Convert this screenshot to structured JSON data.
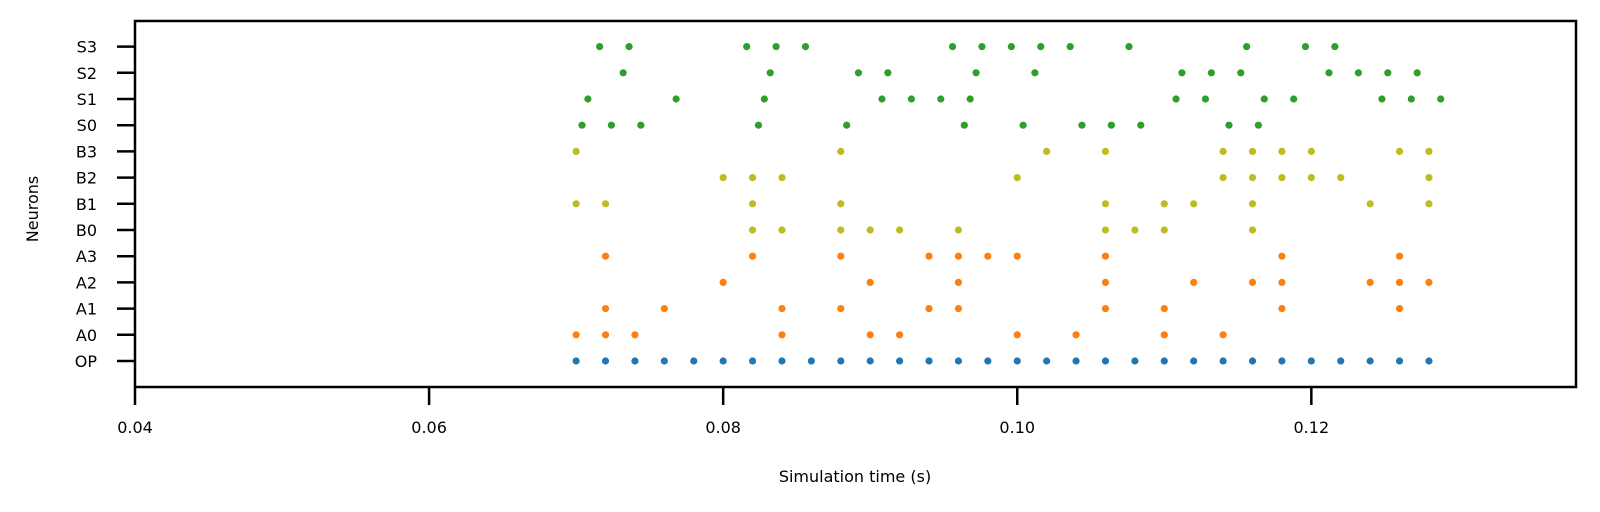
{
  "chart_data": {
    "type": "scatter",
    "xlabel": "Simulation time (s)",
    "ylabel": "Neurons",
    "xlim": [
      0.04,
      0.138
    ],
    "x_ticks": [
      "0.04",
      "0.06",
      "0.08",
      "0.10",
      "0.12"
    ],
    "x_tick_values": [
      0.04,
      0.06,
      0.08,
      0.1,
      0.12
    ],
    "categories": [
      "OP",
      "A0",
      "A1",
      "A2",
      "A3",
      "B0",
      "B1",
      "B2",
      "B3",
      "S0",
      "S1",
      "S2",
      "S3"
    ],
    "grid": false,
    "series": [
      {
        "category": "OP",
        "color": "#1f77b4",
        "x": [
          0.07,
          0.072,
          0.074,
          0.076,
          0.078,
          0.08,
          0.082,
          0.084,
          0.086,
          0.088,
          0.09,
          0.092,
          0.094,
          0.096,
          0.098,
          0.1,
          0.102,
          0.104,
          0.106,
          0.108,
          0.11,
          0.112,
          0.114,
          0.116,
          0.118,
          0.12,
          0.122,
          0.124,
          0.126,
          0.128
        ]
      },
      {
        "category": "A0",
        "color": "#ff7f0e",
        "x": [
          0.07,
          0.072,
          0.074,
          0.084,
          0.09,
          0.092,
          0.1,
          0.104,
          0.11,
          0.114
        ]
      },
      {
        "category": "A1",
        "color": "#ff7f0e",
        "x": [
          0.072,
          0.076,
          0.084,
          0.088,
          0.094,
          0.096,
          0.106,
          0.11,
          0.118,
          0.126
        ]
      },
      {
        "category": "A2",
        "color": "#ff7f0e",
        "x": [
          0.08,
          0.09,
          0.096,
          0.106,
          0.112,
          0.116,
          0.118,
          0.124,
          0.126,
          0.128
        ]
      },
      {
        "category": "A3",
        "color": "#ff7f0e",
        "x": [
          0.072,
          0.082,
          0.088,
          0.094,
          0.096,
          0.098,
          0.1,
          0.106,
          0.118,
          0.126
        ]
      },
      {
        "category": "B0",
        "color": "#bcbd22",
        "x": [
          0.082,
          0.084,
          0.088,
          0.09,
          0.092,
          0.096,
          0.106,
          0.108,
          0.11,
          0.116
        ]
      },
      {
        "category": "B1",
        "color": "#bcbd22",
        "x": [
          0.07,
          0.072,
          0.082,
          0.088,
          0.106,
          0.11,
          0.112,
          0.116,
          0.124,
          0.128
        ]
      },
      {
        "category": "B2",
        "color": "#bcbd22",
        "x": [
          0.08,
          0.082,
          0.084,
          0.1,
          0.114,
          0.116,
          0.118,
          0.12,
          0.122,
          0.128
        ]
      },
      {
        "category": "B3",
        "color": "#bcbd22",
        "x": [
          0.07,
          0.088,
          0.102,
          0.106,
          0.114,
          0.116,
          0.118,
          0.12,
          0.126,
          0.128
        ]
      },
      {
        "category": "S0",
        "color": "#2ca02c",
        "x": [
          0.0704,
          0.0724,
          0.0744,
          0.0824,
          0.0884,
          0.0964,
          0.1004,
          0.1044,
          0.1064,
          0.1084,
          0.1144,
          0.1164
        ]
      },
      {
        "category": "S1",
        "color": "#2ca02c",
        "x": [
          0.0708,
          0.0768,
          0.0828,
          0.0908,
          0.0928,
          0.0948,
          0.0968,
          0.1108,
          0.1128,
          0.1168,
          0.1188,
          0.1248,
          0.1268,
          0.1288
        ]
      },
      {
        "category": "S2",
        "color": "#2ca02c",
        "x": [
          0.0732,
          0.0832,
          0.0892,
          0.0912,
          0.0972,
          0.1012,
          0.1112,
          0.1132,
          0.1152,
          0.1212,
          0.1232,
          0.1252,
          0.1272
        ]
      },
      {
        "category": "S3",
        "color": "#2ca02c",
        "x": [
          0.0716,
          0.0736,
          0.0816,
          0.0836,
          0.0856,
          0.0956,
          0.0976,
          0.0996,
          0.1016,
          0.1036,
          0.1076,
          0.1156,
          0.1196,
          0.1216
        ]
      }
    ]
  }
}
